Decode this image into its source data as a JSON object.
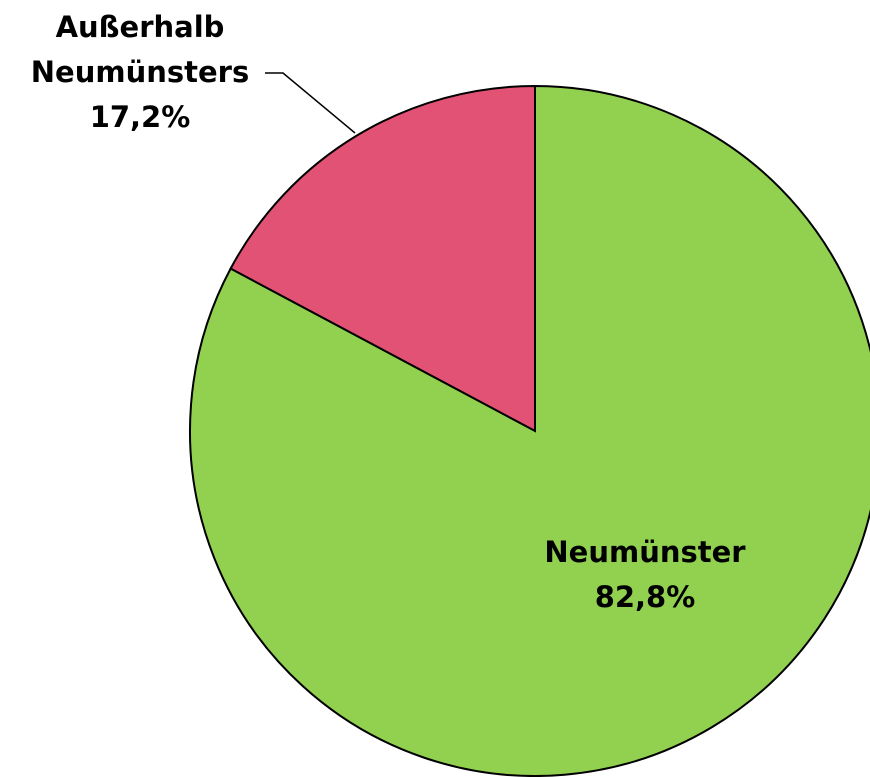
{
  "chart_data": {
    "type": "pie",
    "categories": [
      "Neumünster",
      "Außerhalb Neumünsters"
    ],
    "values": [
      82.8,
      17.2
    ],
    "value_labels": [
      "82,8%",
      "17,2%"
    ],
    "colors": [
      "#92d050",
      "#e25274"
    ]
  }
}
